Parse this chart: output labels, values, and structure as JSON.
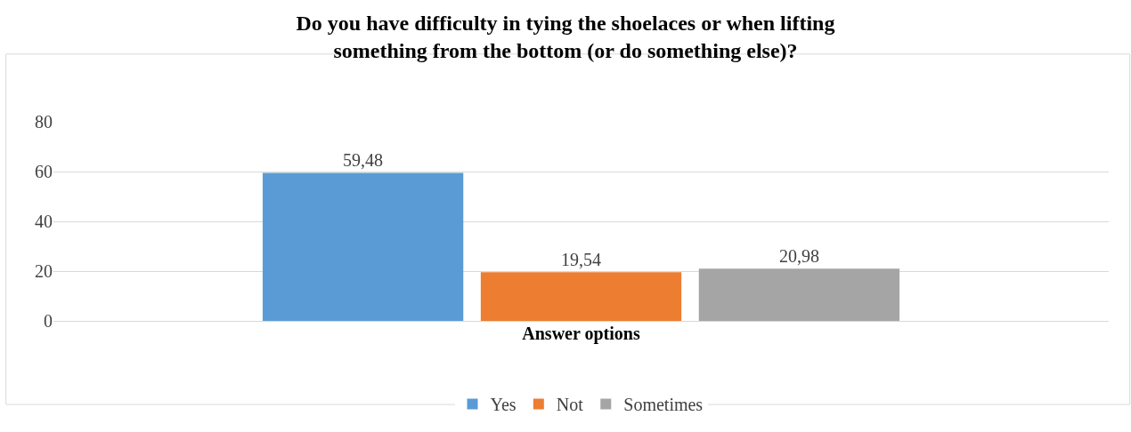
{
  "chart_data": {
    "type": "bar",
    "title": "Do you have difficulty in tying the shoelaces or when lifting something from the bottom (or do something else)?",
    "categories": [
      "Answer options"
    ],
    "series": [
      {
        "name": "Yes",
        "color": "#5b9bd5",
        "values": [
          59.48
        ],
        "value_labels": [
          "59,48"
        ]
      },
      {
        "name": "Not",
        "color": "#ed7d31",
        "values": [
          19.54
        ],
        "value_labels": [
          "19,54"
        ]
      },
      {
        "name": "Sometimes",
        "color": "#a5a5a5",
        "values": [
          20.98
        ],
        "value_labels": [
          "20,98"
        ]
      }
    ],
    "ylim": [
      0,
      80
    ],
    "yticks": [
      0,
      20,
      40,
      60,
      80
    ],
    "grid": "y",
    "legend": "bottom"
  }
}
